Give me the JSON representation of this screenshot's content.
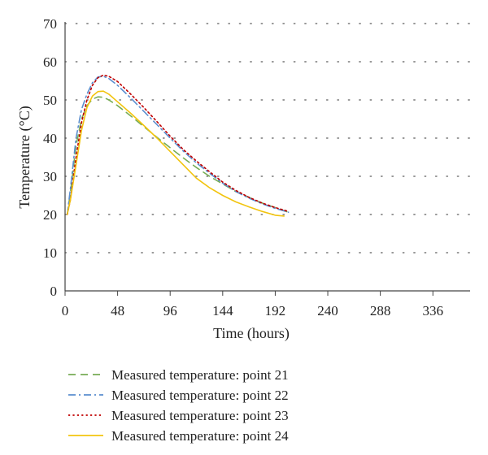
{
  "chart_data": {
    "type": "line",
    "title": "",
    "xlabel": "Time (hours)",
    "ylabel": "Temperature (°C)",
    "xlim": [
      0,
      370
    ],
    "ylim": [
      0,
      70
    ],
    "xticks": [
      "0",
      "48",
      "96",
      "144",
      "192",
      "240",
      "288",
      "336"
    ],
    "yticks": [
      "0",
      "10",
      "20",
      "30",
      "40",
      "50",
      "60",
      "70"
    ],
    "grid": "horizontal dotted",
    "legend_position": "bottom",
    "series": [
      {
        "name": "Measured temperature: point 21",
        "color": "#77ac55",
        "dash": "dashed",
        "x": [
          2,
          5,
          10,
          15,
          20,
          25,
          30,
          35,
          40,
          48,
          60,
          72,
          84,
          96,
          108,
          120,
          132,
          144,
          156,
          168,
          180,
          192,
          204
        ],
        "y": [
          20,
          26,
          38,
          45,
          48.5,
          50.2,
          50.8,
          50.7,
          50,
          48.5,
          45.8,
          43,
          40.2,
          37.5,
          34.8,
          32.3,
          30,
          28,
          26,
          24.5,
          23,
          21.8,
          20.6
        ]
      },
      {
        "name": "Measured temperature: point 22",
        "color": "#5b8ecf",
        "dash": "dash-dot",
        "x": [
          2,
          5,
          10,
          15,
          20,
          25,
          30,
          35,
          40,
          48,
          60,
          72,
          84,
          96,
          108,
          120,
          132,
          144,
          156,
          168,
          180,
          192,
          204
        ],
        "y": [
          20,
          27,
          40,
          47.5,
          51.5,
          54.5,
          56,
          56.2,
          55.6,
          53.8,
          50.5,
          47,
          43.5,
          40,
          36.6,
          33.5,
          30.8,
          28.2,
          26,
          24.3,
          22.8,
          21.6,
          20.6
        ]
      },
      {
        "name": "Measured temperature: point 23",
        "color": "#c00000",
        "dash": "dotted",
        "x": [
          2,
          5,
          10,
          15,
          20,
          25,
          30,
          35,
          40,
          48,
          60,
          72,
          84,
          96,
          108,
          120,
          132,
          144,
          156,
          168,
          180,
          192,
          204
        ],
        "y": [
          20,
          24,
          35,
          44,
          50,
          53.8,
          55.8,
          56.5,
          56.2,
          54.8,
          51.5,
          48,
          44.3,
          40.5,
          37,
          34,
          31.2,
          28.5,
          26.3,
          24.5,
          23,
          21.8,
          20.8
        ]
      },
      {
        "name": "Measured temperature: point 24",
        "color": "#f2c40f",
        "dash": "solid",
        "x": [
          2,
          5,
          10,
          15,
          20,
          25,
          30,
          35,
          40,
          48,
          60,
          72,
          84,
          96,
          108,
          120,
          132,
          144,
          156,
          168,
          180,
          192,
          200
        ],
        "y": [
          20,
          24,
          33,
          42,
          48,
          51,
          52.2,
          52.3,
          51.5,
          49.5,
          46.5,
          43.3,
          40,
          36.5,
          33,
          29.5,
          27,
          25,
          23.3,
          22,
          20.8,
          19.8,
          19.6
        ]
      }
    ]
  }
}
